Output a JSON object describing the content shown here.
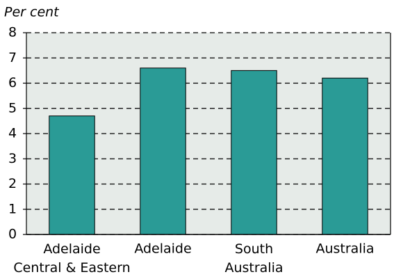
{
  "chart_data": {
    "type": "bar",
    "y_label": "Per cent",
    "categories": [
      "Adelaide\nCentral & Eastern",
      "Adelaide",
      "South\nAustralia",
      "Australia"
    ],
    "values": [
      4.7,
      6.6,
      6.5,
      6.2
    ],
    "color": "#2a9b96",
    "ylim": [
      0,
      8
    ],
    "yticks": [
      0,
      1,
      2,
      3,
      4,
      5,
      6,
      7,
      8
    ],
    "grid": true
  }
}
